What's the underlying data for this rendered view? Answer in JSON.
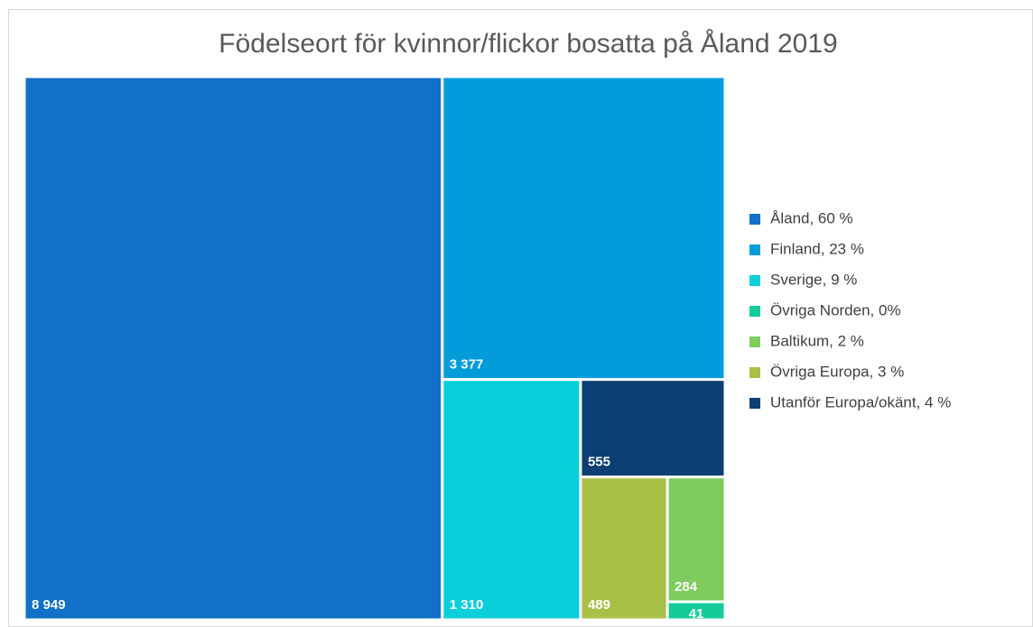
{
  "chart_data": {
    "type": "treemap",
    "title": "Födelseort för kvinnor/flickor bosatta på Åland 2019",
    "categories": [
      "Åland, 60 %",
      "Finland, 23 %",
      "Sverige, 9 %",
      "Övriga Norden, 0%",
      "Baltikum, 2 %",
      "Övriga Europa, 3 %",
      "Utanför Europa/okänt, 4 %"
    ],
    "values": [
      8949,
      3377,
      1310,
      41,
      284,
      489,
      555
    ],
    "value_labels": [
      "8 949",
      "3 377",
      "1 310",
      "41",
      "284",
      "489",
      "555"
    ],
    "colors": [
      "#1170c8",
      "#039cda",
      "#0bcfda",
      "#14cc9a",
      "#7ecb5e",
      "#a8c045",
      "#0c3f73"
    ],
    "legend": "right"
  }
}
